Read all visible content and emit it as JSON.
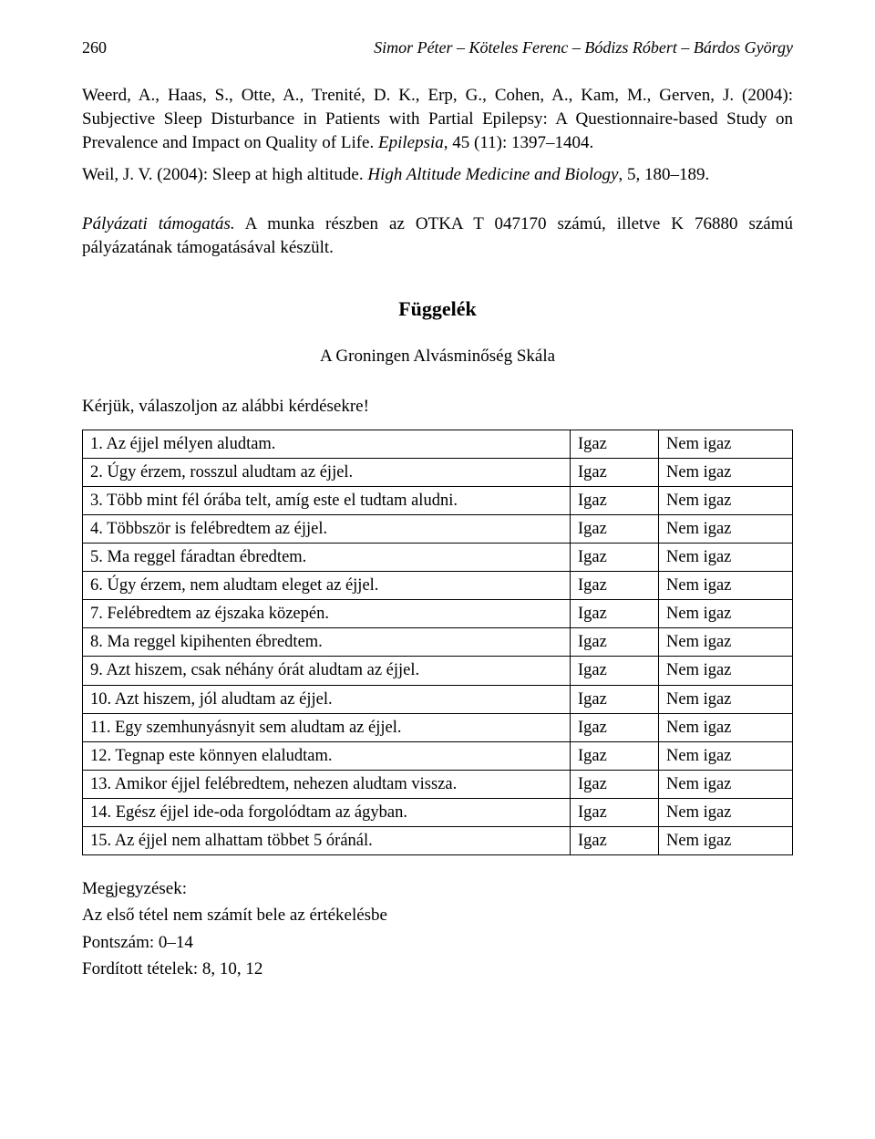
{
  "header": {
    "page_number": "260",
    "running_title": "Simor Péter – Köteles Ferenc – Bódizs Róbert – Bárdos György"
  },
  "references": [
    {
      "text_before": "Weerd, A., Haas, S., Otte, A., Trenité, D. K., Erp, G., Cohen, A., Kam, M., Gerven, J. (2004): Subjective Sleep Disturbance in Patients with Partial Epilepsy: A Questionnaire-based Study on Prevalence and Impact on Quality of Life. ",
      "journal": "Epilepsia",
      "text_after": ", 45 (11): 1397–1404."
    },
    {
      "text_before": "Weil, J. V. (2004): Sleep at high altitude. ",
      "journal": "High Altitude Medicine and Biology",
      "text_after": ", 5, 180–189."
    }
  ],
  "support": {
    "label": "Pályázati támogatás.",
    "text": " A munka részben az OTKA T 047170 számú, illetve K 76880 számú pályázatának támogatásával készült."
  },
  "appendix": {
    "title": "Függelék",
    "subtitle": "A Groningen Alvásminőség Skála",
    "instruction": "Kérjük, válaszoljon az alábbi kérdésekre!"
  },
  "answers": {
    "true": "Igaz",
    "false": "Nem igaz"
  },
  "items": [
    "1. Az éjjel mélyen aludtam.",
    "2. Úgy érzem, rosszul aludtam az éjjel.",
    "3. Több mint fél órába telt, amíg este el tudtam aludni.",
    "4. Többször is felébredtem az éjjel.",
    "5. Ma reggel fáradtan ébredtem.",
    "6. Úgy érzem, nem aludtam eleget az éjjel.",
    "7. Felébredtem az éjszaka közepén.",
    "8. Ma reggel kipihenten ébredtem.",
    "9. Azt hiszem, csak néhány órát aludtam az éjjel.",
    "10. Azt hiszem, jól aludtam az éjjel.",
    "11. Egy szemhunyásnyit sem aludtam az éjjel.",
    "12. Tegnap este könnyen elaludtam.",
    "13. Amikor éjjel felébredtem, nehezen aludtam vissza.",
    "14. Egész éjjel ide-oda forgolódtam az ágyban.",
    "15. Az éjjel nem alhattam többet 5 óránál."
  ],
  "notes": {
    "heading": "Megjegyzések:",
    "line1": "Az első tétel nem számít bele az értékelésbe",
    "line2": "Pontszám: 0–14",
    "line3": "Fordított tételek: 8, 10, 12"
  }
}
